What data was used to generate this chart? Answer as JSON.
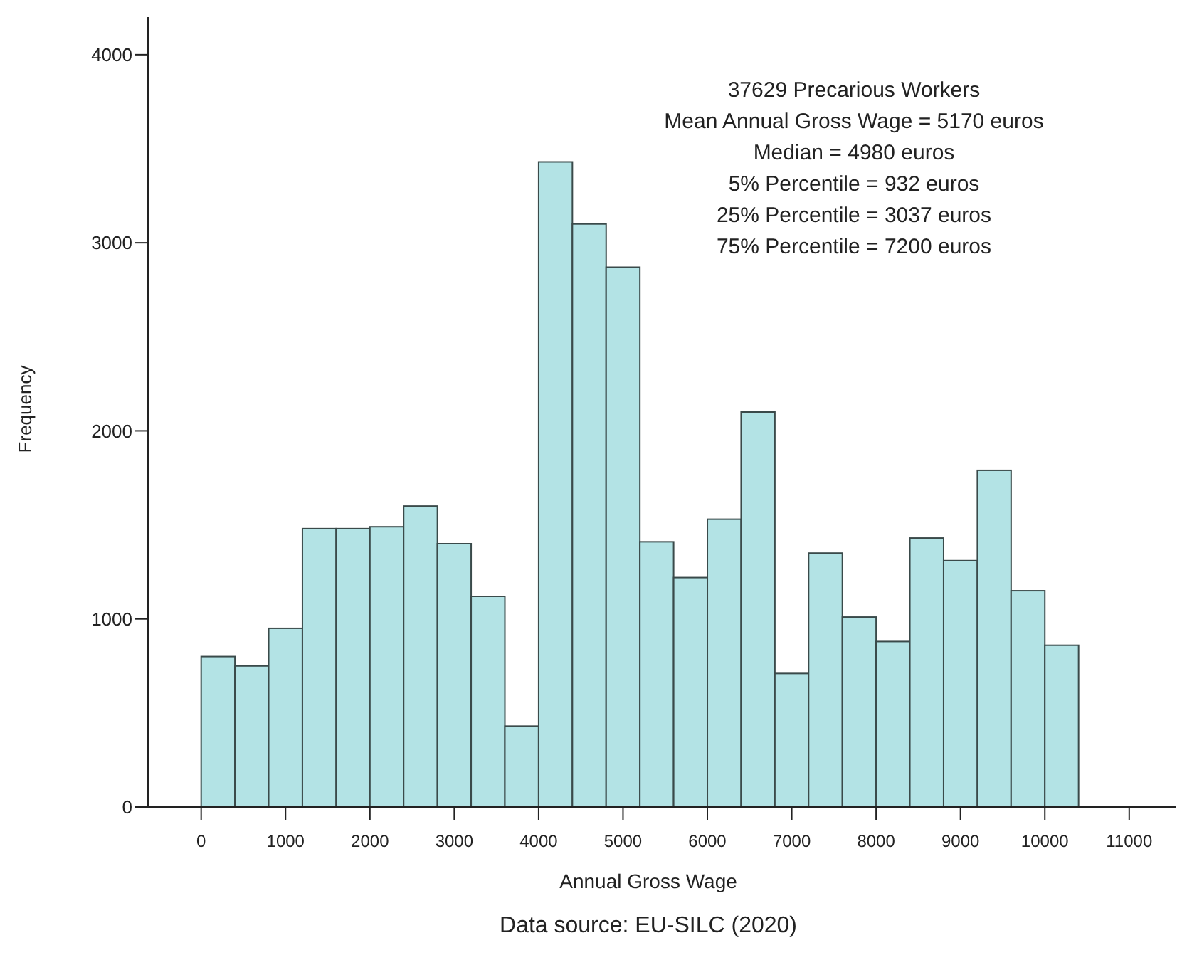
{
  "chart_data": {
    "type": "histogram",
    "xlabel": "Annual Gross Wage",
    "ylabel": "Frequency",
    "bins": [
      0,
      400,
      800,
      1200,
      1600,
      2000,
      2400,
      2800,
      3200,
      3600,
      4000,
      4400,
      4800,
      5200,
      5600,
      6000,
      6400,
      6800,
      7200,
      7600,
      8000,
      8400,
      8800,
      9200,
      9600,
      10000,
      10400
    ],
    "values": [
      800,
      750,
      950,
      1480,
      1480,
      1490,
      1600,
      1400,
      1120,
      430,
      3430,
      3100,
      2870,
      1410,
      1220,
      1530,
      2100,
      710,
      1350,
      1010,
      880,
      1430,
      1310,
      1790,
      1150,
      860
    ],
    "color": "#b3e3e5",
    "xlim": [
      -630,
      11550
    ],
    "xticks": [
      0,
      1000,
      2000,
      3000,
      4000,
      5000,
      6000,
      7000,
      8000,
      9000,
      10000,
      11000
    ],
    "ylim": [
      0,
      4200
    ],
    "yticks": [
      0,
      1000,
      2000,
      3000,
      4000
    ],
    "grid": false,
    "annotations": [
      "37629 Precarious Workers",
      "Mean Annual Gross Wage = 5170 euros",
      "Median = 4980 euros",
      "5% Percentile = 932 euros",
      "25% Percentile = 3037 euros",
      "75% Percentile = 7200 euros",
      "Data source: EU-SILC (2020)"
    ]
  }
}
